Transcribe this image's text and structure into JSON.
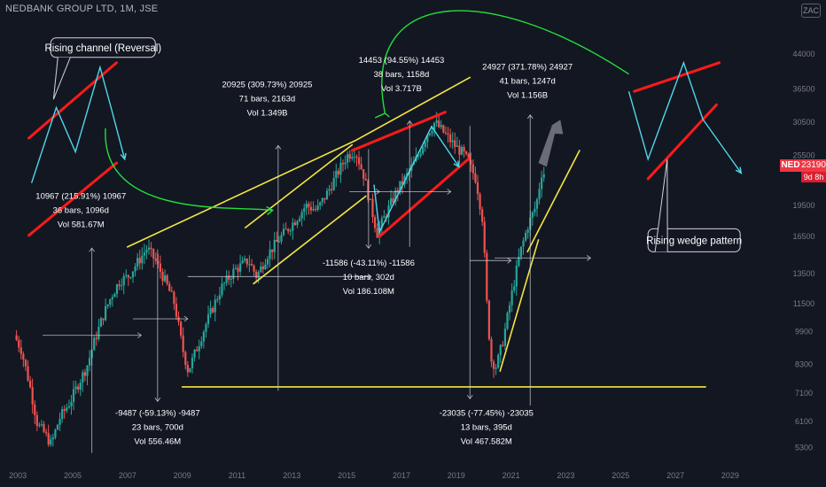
{
  "header": {
    "title": "NEDBANK GROUP LTD, 1M, JSE",
    "currency_badge": "ZAC"
  },
  "ticker": {
    "symbol": "NED",
    "price": "23190",
    "countdown": "9d 8h"
  },
  "colors": {
    "background": "#131722",
    "bull_candle": "#26a69a",
    "bear_candle": "#ef5350",
    "yellow_line": "#f5e642",
    "red_line": "#ff1a1a",
    "cyan_arrow": "#4fd8e8",
    "green_arrow": "#22e03a",
    "measure_line": "#d1d4dc",
    "axis_text": "#787b86"
  },
  "chart_data": {
    "type": "candlestick",
    "x_axis": {
      "type": "time",
      "range": [
        2002.8,
        2030.2
      ],
      "ticks": [
        "2003",
        "2005",
        "2007",
        "2009",
        "2011",
        "2013",
        "2015",
        "2017",
        "2019",
        "2021",
        "2023",
        "2025",
        "2027",
        "2029"
      ]
    },
    "y_axis": {
      "scale": "log",
      "range": [
        4950,
        53500
      ],
      "position": "right",
      "ticks": [
        "44000",
        "36500",
        "30500",
        "25500",
        "19500",
        "16500",
        "13500",
        "11500",
        "9900",
        "8300",
        "7100",
        "6100",
        "5300"
      ]
    },
    "price_path": [
      [
        2002.95,
        9700
      ],
      [
        2003.2,
        9000
      ],
      [
        2003.5,
        7500
      ],
      [
        2003.8,
        6000
      ],
      [
        2004.0,
        5800
      ],
      [
        2004.3,
        5400
      ],
      [
        2004.6,
        6200
      ],
      [
        2005.0,
        6800
      ],
      [
        2005.3,
        7500
      ],
      [
        2005.6,
        8200
      ],
      [
        2005.9,
        9500
      ],
      [
        2006.2,
        10800
      ],
      [
        2006.5,
        12000
      ],
      [
        2006.8,
        13000
      ],
      [
        2007.1,
        13300
      ],
      [
        2007.4,
        14200
      ],
      [
        2007.8,
        15500
      ],
      [
        2008.1,
        14500
      ],
      [
        2008.5,
        12800
      ],
      [
        2008.8,
        11500
      ],
      [
        2009.1,
        9000
      ],
      [
        2009.3,
        8000
      ],
      [
        2009.6,
        9000
      ],
      [
        2010.0,
        10500
      ],
      [
        2010.5,
        12500
      ],
      [
        2011.0,
        13800
      ],
      [
        2011.5,
        14500
      ],
      [
        2011.8,
        13300
      ],
      [
        2012.2,
        15000
      ],
      [
        2012.7,
        16500
      ],
      [
        2013.2,
        18000
      ],
      [
        2013.6,
        19500
      ],
      [
        2014.0,
        19000
      ],
      [
        2014.4,
        21000
      ],
      [
        2014.8,
        23500
      ],
      [
        2015.1,
        25500
      ],
      [
        2015.4,
        26200
      ],
      [
        2015.7,
        23000
      ],
      [
        2016.0,
        19000
      ],
      [
        2016.2,
        16800
      ],
      [
        2016.5,
        18500
      ],
      [
        2016.9,
        21000
      ],
      [
        2017.3,
        23000
      ],
      [
        2017.7,
        25500
      ],
      [
        2018.0,
        28500
      ],
      [
        2018.3,
        30500
      ],
      [
        2018.7,
        28500
      ],
      [
        2019.0,
        27000
      ],
      [
        2019.4,
        25500
      ],
      [
        2019.8,
        22500
      ],
      [
        2020.05,
        18000
      ],
      [
        2020.2,
        11500
      ],
      [
        2020.35,
        8500
      ],
      [
        2020.55,
        8200
      ],
      [
        2020.8,
        9500
      ],
      [
        2021.1,
        12000
      ],
      [
        2021.4,
        15000
      ],
      [
        2021.7,
        17500
      ],
      [
        2022.0,
        19500
      ],
      [
        2022.2,
        23190
      ]
    ],
    "annotations": [
      {
        "text": [
          "10967 (215.91%) 10967",
          "36 bars, 1096d",
          "Vol 581.67M"
        ]
      },
      {
        "text": [
          "-9487 (-59.13%) -9487",
          "23 bars, 700d",
          "Vol 556.46M"
        ]
      },
      {
        "text": [
          "20925 (309.73%) 20925",
          "71 bars, 2163d",
          "Vol 1.349B"
        ]
      },
      {
        "text": [
          "-11586 (-43.11%) -11586",
          "10 bars, 302d",
          "Vol 186.108M"
        ]
      },
      {
        "text": [
          "14453 (94.55%) 14453",
          "38 bars, 1158d",
          "Vol 3.717B"
        ]
      },
      {
        "text": [
          "-23035 (-77.45%) -23035",
          "13 bars, 395d",
          "Vol 467.582M"
        ]
      },
      {
        "text": [
          "24927 (371.78%) 24927",
          "41 bars, 1247d",
          "Vol 1.156B"
        ]
      }
    ],
    "callouts": [
      "Rising channel (Reversal)",
      "Rising wedge pattern"
    ]
  }
}
